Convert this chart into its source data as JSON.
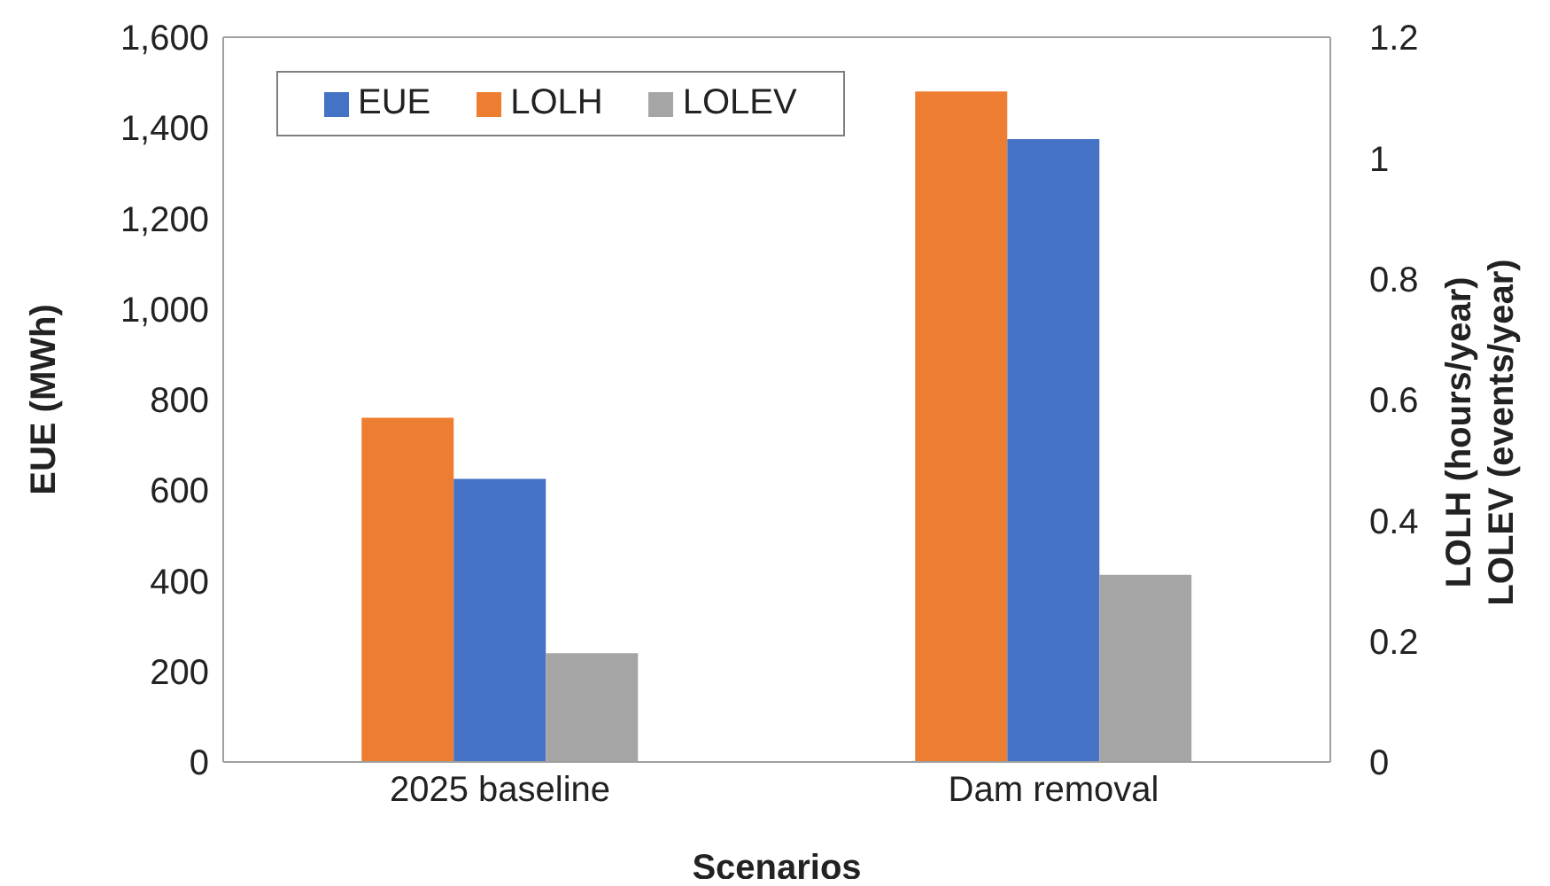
{
  "chart_data": {
    "type": "bar",
    "xlabel": "Scenarios",
    "ylabel": "EUE (MWh)",
    "y2label": "LOLH (hours/year)\nLOLEV (events/year)",
    "categories": [
      "2025 baseline",
      "Dam removal"
    ],
    "series": [
      {
        "name": "LOLH",
        "color": "#ed7d31",
        "axis": "y2",
        "values": [
          0.57,
          1.11
        ]
      },
      {
        "name": "EUE",
        "color": "#4472c4",
        "axis": "y",
        "values": [
          625,
          1375
        ]
      },
      {
        "name": "LOLEV",
        "color": "#a5a5a5",
        "axis": "y2",
        "values": [
          0.18,
          0.31
        ]
      }
    ],
    "ylim": [
      0,
      1600
    ],
    "yticks": [
      0,
      200,
      400,
      600,
      800,
      {
        "value": 1000,
        "label": "1,000"
      },
      {
        "value": 1200,
        "label": "1,200"
      },
      {
        "value": 1400,
        "label": "1,400"
      },
      {
        "value": 1600,
        "label": "1,600"
      }
    ],
    "y2lim": [
      0,
      1.2
    ],
    "y2ticks": [
      0,
      0.2,
      0.4,
      0.6,
      0.8,
      1,
      1.2
    ],
    "grid": false,
    "legend": "top left"
  }
}
